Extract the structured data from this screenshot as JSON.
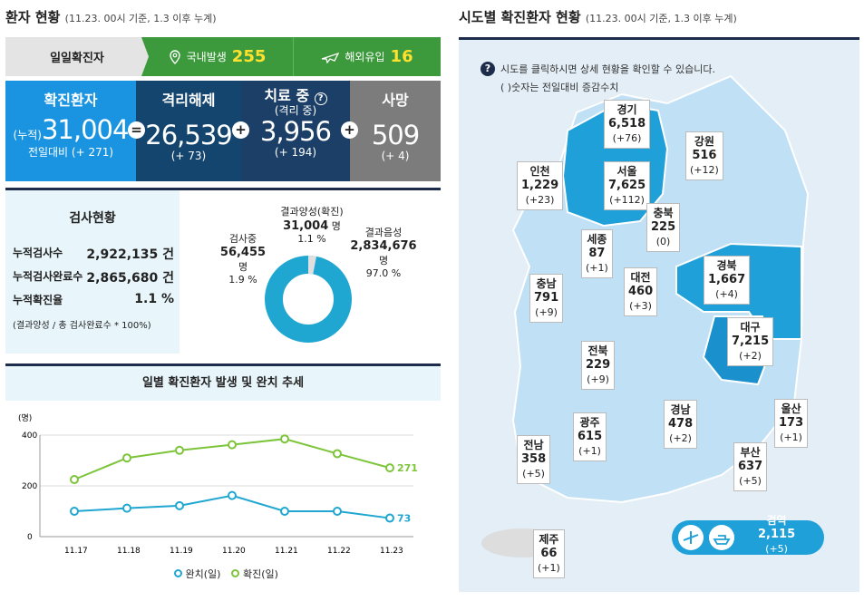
{
  "left_header": {
    "title": "환자 현황",
    "subtitle": "(11.23. 00시 기준, 1.3 이후 누계)"
  },
  "right_header": {
    "title": "시도별 확진환자 현황",
    "subtitle": "(11.23. 00시 기준, 1.3 이후 누계)"
  },
  "daily": {
    "label": "일일확진자",
    "domestic_label": "국내발생",
    "domestic": "255",
    "overseas_label": "해외유입",
    "overseas": "16"
  },
  "summary": {
    "confirmed": {
      "title": "확진환자",
      "prefix": "(누적)",
      "value": "31,004",
      "change": "전일대비 (+ 271)"
    },
    "released": {
      "title": "격리해제",
      "value": "26,539",
      "change": "(+ 73)"
    },
    "treatment": {
      "title": "치료 중",
      "sub": "(격리 중)",
      "value": "3,956",
      "change": "(+ 194)"
    },
    "deaths": {
      "title": "사망",
      "value": "509",
      "change": "(+ 4)"
    },
    "op_eq": "=",
    "op_plus": "+"
  },
  "tests": {
    "title": "검사현황",
    "rows": [
      {
        "label": "누적검사수",
        "value": "2,922,135 건"
      },
      {
        "label": "누적검사완료수",
        "value": "2,865,680 건"
      },
      {
        "label": "누적확진율",
        "value": "1.1 %"
      }
    ],
    "note": "(결과양성 / 총 검사완료수 * 100%)",
    "donut": {
      "pending_label": "검사중",
      "pending": "56,455",
      "pending_unit": "명",
      "pending_pct": "1.9 %",
      "positive_label": "결과양성(확진)",
      "positive": "31,004",
      "positive_unit": "명",
      "positive_pct": "1.1 %",
      "negative_label": "결과음성",
      "negative": "2,834,676",
      "negative_unit": "명",
      "negative_pct": "97.0 %",
      "fractions": [
        0.019,
        0.011,
        0.97
      ]
    }
  },
  "chart_data": {
    "type": "line",
    "title": "일별 확진환자 발생 및 완치 추세",
    "ylabel": "(명)",
    "ylim": [
      0,
      400
    ],
    "yticks": [
      "400",
      "200",
      "0"
    ],
    "categories": [
      "11.17",
      "11.18",
      "11.19",
      "11.20",
      "11.21",
      "11.22",
      "11.23"
    ],
    "series": [
      {
        "name": "완치(일)",
        "color": "#1fa7d1",
        "values": [
          100,
          112,
          122,
          162,
          100,
          100,
          73
        ],
        "end_label": "73"
      },
      {
        "name": "확진(일)",
        "color": "#7cc53a",
        "values": [
          225,
          310,
          340,
          362,
          385,
          327,
          271
        ],
        "end_label": "271"
      }
    ]
  },
  "map": {
    "hint": "시도를 클릭하시면 상세 현황을 확인할 수 있습니다.",
    "hint2": "( )숫자는 전일대비 증감수치",
    "regions": [
      {
        "name": "경기",
        "value": "6,518",
        "change": "(+76)"
      },
      {
        "name": "강원",
        "value": "516",
        "change": "(+12)"
      },
      {
        "name": "인천",
        "value": "1,229",
        "change": "(+23)"
      },
      {
        "name": "서울",
        "value": "7,625",
        "change": "(+112)"
      },
      {
        "name": "충북",
        "value": "225",
        "change": "(0)"
      },
      {
        "name": "세종",
        "value": "87",
        "change": "(+1)"
      },
      {
        "name": "경북",
        "value": "1,667",
        "change": "(+4)"
      },
      {
        "name": "충남",
        "value": "791",
        "change": "(+9)"
      },
      {
        "name": "대전",
        "value": "460",
        "change": "(+3)"
      },
      {
        "name": "대구",
        "value": "7,215",
        "change": "(+2)"
      },
      {
        "name": "전북",
        "value": "229",
        "change": "(+9)"
      },
      {
        "name": "울산",
        "value": "173",
        "change": "(+1)"
      },
      {
        "name": "경남",
        "value": "478",
        "change": "(+2)"
      },
      {
        "name": "광주",
        "value": "615",
        "change": "(+1)"
      },
      {
        "name": "부산",
        "value": "637",
        "change": "(+5)"
      },
      {
        "name": "전남",
        "value": "358",
        "change": "(+5)"
      },
      {
        "name": "검역",
        "value": "2,115",
        "change": "(+5)"
      },
      {
        "name": "제주",
        "value": "66",
        "change": "(+1)"
      }
    ]
  },
  "colors": {
    "navy": "#1c2c4a",
    "green": "#3c9a3c",
    "blue": "#1a94e0",
    "darkblue": "#14456f",
    "gray": "#7c7c7c"
  }
}
